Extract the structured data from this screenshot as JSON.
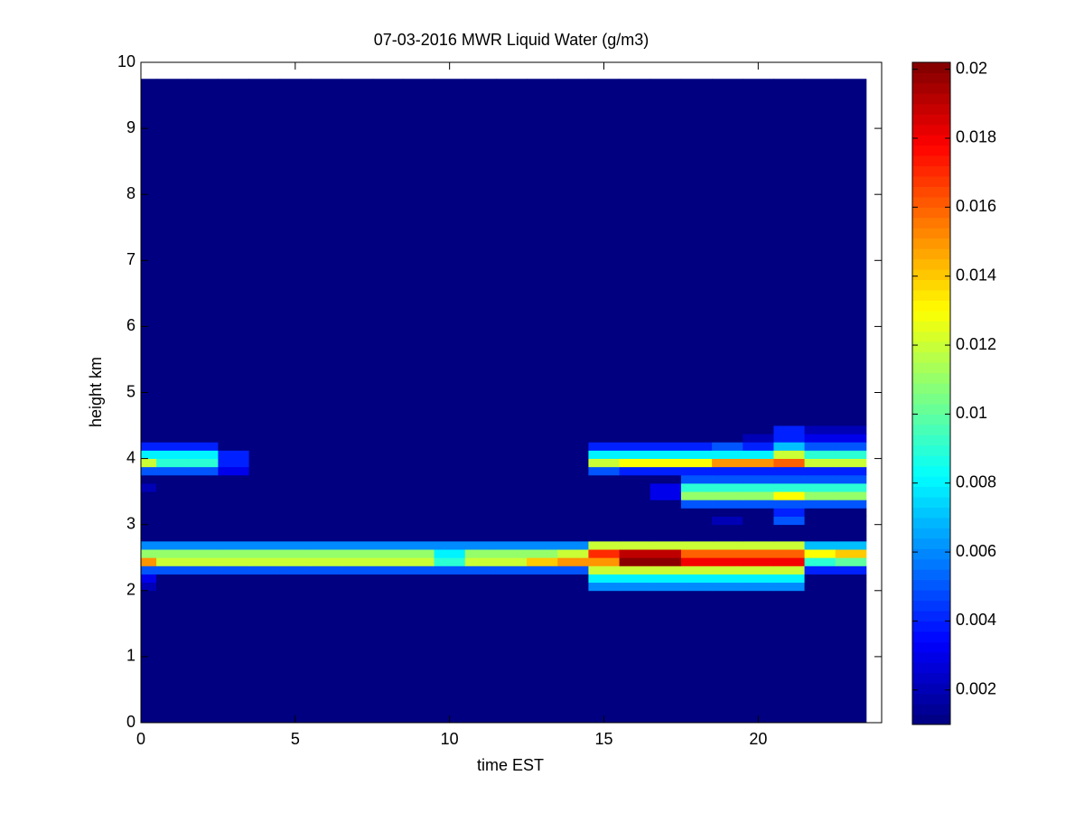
{
  "chart_data": {
    "type": "heatmap",
    "title": "07-03-2016 MWR Liquid Water (g/m3)",
    "x_label": "time EST",
    "y_label": "height km",
    "xlim": [
      0,
      24
    ],
    "ylim": [
      0,
      10
    ],
    "xticks": [
      0,
      5,
      10,
      15,
      20
    ],
    "yticks": [
      0,
      1,
      2,
      3,
      4,
      5,
      6,
      7,
      8,
      9,
      10
    ],
    "colormap": "jet",
    "clim": [
      0.001,
      0.0202
    ],
    "colorbar_ticks": [
      0.002,
      0.004,
      0.006,
      0.008,
      0.01,
      0.012,
      0.014,
      0.016,
      0.018,
      0.02
    ],
    "x_edges": [
      0,
      0.5,
      1.5,
      2.5,
      3.5,
      4.5,
      5.5,
      6.5,
      7.5,
      8.5,
      9.5,
      10.5,
      11.5,
      12.5,
      13.5,
      14.5,
      15.5,
      16.5,
      17.5,
      18.5,
      19.5,
      20.5,
      21.5,
      22.5,
      23.5
    ],
    "y_edges": [
      0,
      2.0,
      2.125,
      2.25,
      2.375,
      2.5,
      2.625,
      2.75,
      3.0,
      3.125,
      3.25,
      3.375,
      3.5,
      3.625,
      3.75,
      3.875,
      4.0,
      4.125,
      4.25,
      4.375,
      4.5,
      9.75
    ],
    "z": [
      [
        0.001,
        0.001,
        0.001,
        0.001,
        0.001,
        0.001,
        0.001,
        0.001,
        0.001,
        0.001,
        0.001,
        0.001,
        0.001,
        0.001,
        0.001,
        0.001,
        0.001,
        0.001,
        0.001,
        0.001,
        0.001,
        0.001,
        0.001,
        0.001
      ],
      [
        0.002,
        0.001,
        0.001,
        0.001,
        0.001,
        0.001,
        0.001,
        0.001,
        0.001,
        0.001,
        0.001,
        0.001,
        0.001,
        0.001,
        0.001,
        0.006,
        0.006,
        0.006,
        0.006,
        0.006,
        0.006,
        0.006,
        0.001,
        0.001
      ],
      [
        0.003,
        0.001,
        0.001,
        0.001,
        0.001,
        0.001,
        0.001,
        0.001,
        0.001,
        0.001,
        0.001,
        0.001,
        0.001,
        0.001,
        0.001,
        0.008,
        0.008,
        0.008,
        0.008,
        0.008,
        0.008,
        0.008,
        0.001,
        0.001
      ],
      [
        0.005,
        0.005,
        0.005,
        0.005,
        0.005,
        0.005,
        0.005,
        0.005,
        0.005,
        0.005,
        0.005,
        0.005,
        0.005,
        0.005,
        0.005,
        0.012,
        0.012,
        0.012,
        0.012,
        0.012,
        0.012,
        0.012,
        0.004,
        0.004
      ],
      [
        0.015,
        0.012,
        0.012,
        0.012,
        0.012,
        0.012,
        0.012,
        0.012,
        0.012,
        0.012,
        0.009,
        0.012,
        0.012,
        0.014,
        0.015,
        0.015,
        0.02,
        0.02,
        0.018,
        0.018,
        0.018,
        0.018,
        0.009,
        0.01
      ],
      [
        0.011,
        0.011,
        0.011,
        0.011,
        0.011,
        0.011,
        0.011,
        0.011,
        0.011,
        0.011,
        0.008,
        0.011,
        0.011,
        0.011,
        0.012,
        0.017,
        0.019,
        0.019,
        0.016,
        0.016,
        0.016,
        0.016,
        0.013,
        0.014
      ],
      [
        0.006,
        0.006,
        0.006,
        0.006,
        0.006,
        0.006,
        0.006,
        0.006,
        0.006,
        0.006,
        0.006,
        0.006,
        0.006,
        0.006,
        0.006,
        0.012,
        0.012,
        0.012,
        0.012,
        0.012,
        0.012,
        0.012,
        0.007,
        0.007
      ],
      [
        0.001,
        0.001,
        0.001,
        0.001,
        0.001,
        0.001,
        0.001,
        0.001,
        0.001,
        0.001,
        0.001,
        0.001,
        0.001,
        0.001,
        0.001,
        0.001,
        0.001,
        0.001,
        0.001,
        0.001,
        0.001,
        0.001,
        0.001,
        0.001
      ],
      [
        0.001,
        0.001,
        0.001,
        0.001,
        0.001,
        0.001,
        0.001,
        0.001,
        0.001,
        0.001,
        0.001,
        0.001,
        0.001,
        0.001,
        0.001,
        0.001,
        0.001,
        0.001,
        0.001,
        0.002,
        0.001,
        0.005,
        0.001,
        0.001
      ],
      [
        0.001,
        0.001,
        0.001,
        0.001,
        0.001,
        0.001,
        0.001,
        0.001,
        0.001,
        0.001,
        0.001,
        0.001,
        0.001,
        0.001,
        0.001,
        0.001,
        0.001,
        0.001,
        0.001,
        0.001,
        0.001,
        0.004,
        0.001,
        0.001
      ],
      [
        0.001,
        0.001,
        0.001,
        0.001,
        0.001,
        0.001,
        0.001,
        0.001,
        0.001,
        0.001,
        0.001,
        0.001,
        0.001,
        0.001,
        0.001,
        0.001,
        0.001,
        0.001,
        0.005,
        0.005,
        0.005,
        0.005,
        0.005,
        0.005
      ],
      [
        0.001,
        0.001,
        0.001,
        0.001,
        0.001,
        0.001,
        0.001,
        0.001,
        0.001,
        0.001,
        0.001,
        0.001,
        0.001,
        0.001,
        0.001,
        0.001,
        0.001,
        0.003,
        0.011,
        0.011,
        0.011,
        0.013,
        0.011,
        0.011
      ],
      [
        0.002,
        0.001,
        0.001,
        0.001,
        0.001,
        0.001,
        0.001,
        0.001,
        0.001,
        0.001,
        0.001,
        0.001,
        0.001,
        0.001,
        0.001,
        0.001,
        0.001,
        0.003,
        0.009,
        0.009,
        0.009,
        0.009,
        0.009,
        0.009
      ],
      [
        0.001,
        0.001,
        0.001,
        0.001,
        0.001,
        0.001,
        0.001,
        0.001,
        0.001,
        0.001,
        0.001,
        0.001,
        0.001,
        0.001,
        0.001,
        0.001,
        0.001,
        0.001,
        0.005,
        0.005,
        0.005,
        0.005,
        0.005,
        0.005
      ],
      [
        0.005,
        0.005,
        0.005,
        0.003,
        0.001,
        0.001,
        0.001,
        0.001,
        0.001,
        0.001,
        0.001,
        0.001,
        0.001,
        0.001,
        0.001,
        0.005,
        0.004,
        0.004,
        0.004,
        0.004,
        0.004,
        0.004,
        0.004,
        0.004
      ],
      [
        0.012,
        0.009,
        0.009,
        0.004,
        0.001,
        0.001,
        0.001,
        0.001,
        0.001,
        0.001,
        0.001,
        0.001,
        0.001,
        0.001,
        0.001,
        0.012,
        0.013,
        0.013,
        0.013,
        0.015,
        0.015,
        0.016,
        0.012,
        0.012
      ],
      [
        0.008,
        0.008,
        0.008,
        0.004,
        0.001,
        0.001,
        0.001,
        0.001,
        0.001,
        0.001,
        0.001,
        0.001,
        0.001,
        0.001,
        0.001,
        0.008,
        0.008,
        0.008,
        0.008,
        0.008,
        0.008,
        0.012,
        0.009,
        0.009
      ],
      [
        0.004,
        0.004,
        0.004,
        0.001,
        0.001,
        0.001,
        0.001,
        0.001,
        0.001,
        0.001,
        0.001,
        0.001,
        0.001,
        0.001,
        0.001,
        0.004,
        0.004,
        0.004,
        0.004,
        0.005,
        0.004,
        0.007,
        0.005,
        0.005
      ],
      [
        0.001,
        0.001,
        0.001,
        0.001,
        0.001,
        0.001,
        0.001,
        0.001,
        0.001,
        0.001,
        0.001,
        0.001,
        0.001,
        0.001,
        0.001,
        0.001,
        0.001,
        0.001,
        0.001,
        0.001,
        0.002,
        0.004,
        0.003,
        0.003
      ],
      [
        0.001,
        0.001,
        0.001,
        0.001,
        0.001,
        0.001,
        0.001,
        0.001,
        0.001,
        0.001,
        0.001,
        0.001,
        0.001,
        0.001,
        0.001,
        0.001,
        0.001,
        0.001,
        0.001,
        0.001,
        0.001,
        0.004,
        0.002,
        0.002
      ],
      [
        0.001,
        0.001,
        0.001,
        0.001,
        0.001,
        0.001,
        0.001,
        0.001,
        0.001,
        0.001,
        0.001,
        0.001,
        0.001,
        0.001,
        0.001,
        0.001,
        0.001,
        0.001,
        0.001,
        0.001,
        0.001,
        0.001,
        0.001,
        0.001
      ]
    ]
  }
}
